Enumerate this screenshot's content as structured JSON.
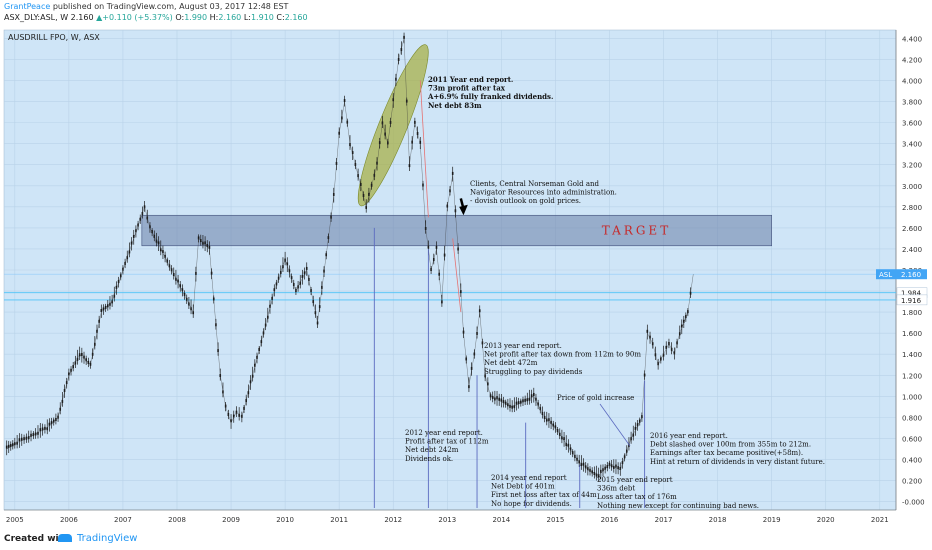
{
  "header": {
    "user": "GrantPeace",
    "published": "published on TradingView.com, August 03, 2017 12:48 EST",
    "symbol": "ASX_DLY:ASL, W",
    "last": "2.160",
    "change": "+0.110 (+5.37%)",
    "o_label": "O:",
    "o": "1.990",
    "h_label": "H:",
    "h": "2.160",
    "l_label": "L:",
    "l": "1.910",
    "c_label": "C:",
    "c": "2.160"
  },
  "footer": {
    "created": "Created with",
    "brand": "TradingView"
  },
  "chart_data": {
    "type": "line",
    "title": "AUSDRILL FPO, W, ASX",
    "xlabel": "",
    "ylabel": "",
    "ylim": [
      -0.1,
      4.5
    ],
    "xlim": [
      2004.8,
      2021.3
    ],
    "x_ticks": [
      "2005",
      "2006",
      "2007",
      "2008",
      "2009",
      "2010",
      "2011",
      "2012",
      "2013",
      "2014",
      "2015",
      "2016",
      "2017",
      "2018",
      "2019",
      "2020",
      "2021"
    ],
    "y_ticks": [
      "4.400",
      "4.200",
      "4.000",
      "3.800",
      "3.600",
      "3.400",
      "3.200",
      "3.000",
      "2.800",
      "2.600",
      "2.400",
      "2.200",
      "2.000",
      "1.800",
      "1.600",
      "1.400",
      "1.200",
      "1.000",
      "0.800",
      "0.600",
      "0.400",
      "0.200",
      "-0.000"
    ],
    "grid": true,
    "series": [
      {
        "x": [
          2004.85,
          2005.0,
          2005.3,
          2005.6,
          2005.8,
          2006.0,
          2006.2,
          2006.4,
          2006.6,
          2006.8,
          2007.0,
          2007.2,
          2007.4,
          2007.5,
          2007.7,
          2007.9,
          2008.1,
          2008.3,
          2008.4,
          2008.6,
          2008.8,
          2008.9,
          2009.0,
          2009.1,
          2009.2,
          2009.4,
          2009.6,
          2009.8,
          2010.0,
          2010.2,
          2010.4,
          2010.6,
          2010.8,
          2010.9,
          2011.0,
          2011.1,
          2011.2,
          2011.3,
          2011.4,
          2011.5,
          2011.6,
          2011.7,
          2011.8,
          2011.9,
          2012.0,
          2012.1,
          2012.2,
          2012.3,
          2012.4,
          2012.5,
          2012.6,
          2012.7,
          2012.8,
          2012.9,
          2013.0,
          2013.1,
          2013.2,
          2013.3,
          2013.4,
          2013.5,
          2013.6,
          2013.7,
          2013.8,
          2014.0,
          2014.2,
          2014.4,
          2014.6,
          2014.8,
          2015.0,
          2015.2,
          2015.4,
          2015.6,
          2015.8,
          2016.0,
          2016.2,
          2016.4,
          2016.6,
          2016.7,
          2016.8,
          2016.9,
          2017.0,
          2017.1,
          2017.2,
          2017.3,
          2017.45,
          2017.55
        ],
        "values": [
          0.5,
          0.55,
          0.62,
          0.7,
          0.8,
          1.2,
          1.4,
          1.3,
          1.8,
          1.9,
          2.2,
          2.5,
          2.8,
          2.6,
          2.4,
          2.2,
          2.0,
          1.8,
          2.5,
          2.4,
          1.2,
          0.9,
          0.75,
          0.85,
          0.8,
          1.2,
          1.6,
          2.0,
          2.3,
          2.0,
          2.2,
          1.7,
          2.5,
          2.9,
          3.5,
          3.8,
          3.4,
          3.2,
          3.0,
          2.8,
          3.0,
          3.2,
          3.6,
          3.4,
          3.8,
          4.2,
          4.4,
          3.2,
          3.6,
          3.4,
          2.6,
          2.2,
          2.4,
          1.9,
          2.8,
          3.1,
          2.4,
          1.6,
          1.1,
          1.4,
          1.8,
          1.2,
          1.0,
          0.95,
          0.9,
          0.95,
          1.0,
          0.8,
          0.7,
          0.55,
          0.4,
          0.3,
          0.25,
          0.35,
          0.3,
          0.6,
          0.8,
          1.6,
          1.5,
          1.3,
          1.4,
          1.5,
          1.4,
          1.6,
          1.8,
          2.16
        ]
      }
    ],
    "annotations": [
      {
        "lines": [
          "2011 Year end report.",
          "73m profit after tax",
          "A+6.9% fully franked dividends.",
          "Net debt 83m"
        ]
      },
      {
        "lines": [
          "Clients, Central Norseman Gold and",
          "Navigator Resources into administration.",
          "- dovish outlook on gold prices."
        ]
      },
      {
        "lines": [
          "2013 year end report.",
          "Net profit after tax down from 112m to 90m",
          "Net debt 472m",
          "Struggling to pay dividends"
        ]
      },
      {
        "lines": [
          "2012 year end report.",
          "Profit after tax of 112m",
          "Net debt 242m",
          "Dividends ok."
        ]
      },
      {
        "lines": [
          "2014 year end report",
          "Net Debt of 401m",
          "First net loss after tax of 44m",
          "No hope for dividends."
        ]
      },
      {
        "lines": [
          "2015 year end report",
          "336m debt",
          "Loss after tax of 176m",
          "Nothing new except for continuing bad news."
        ]
      },
      {
        "lines": [
          "Price of gold increase"
        ]
      },
      {
        "lines": [
          "2016 year end report.",
          "Debt slashed over 100m from 355m to 212m.",
          "Earnings after tax became positive(+58m).",
          "Hint at return of dividends in very distant future."
        ]
      }
    ],
    "target_label": "TARGET",
    "target_zone": [
      2.43,
      2.72
    ],
    "h_levels": [
      {
        "value": 1.984,
        "label": "1.984"
      },
      {
        "value": 1.916,
        "label": "1.916"
      }
    ],
    "last_price": {
      "symbol": "ASL",
      "value": 2.16,
      "label": "2.160"
    },
    "colors": {
      "background": "#cfe5f7",
      "candle_up": "#1a1a1a",
      "zone": "#6a7fa8",
      "ellipse": "#a8b04a",
      "vline": "#5c6bc0",
      "hline": "#4fc3f7",
      "price_tag": "#42a5f5",
      "target_text": "#c62828"
    }
  }
}
